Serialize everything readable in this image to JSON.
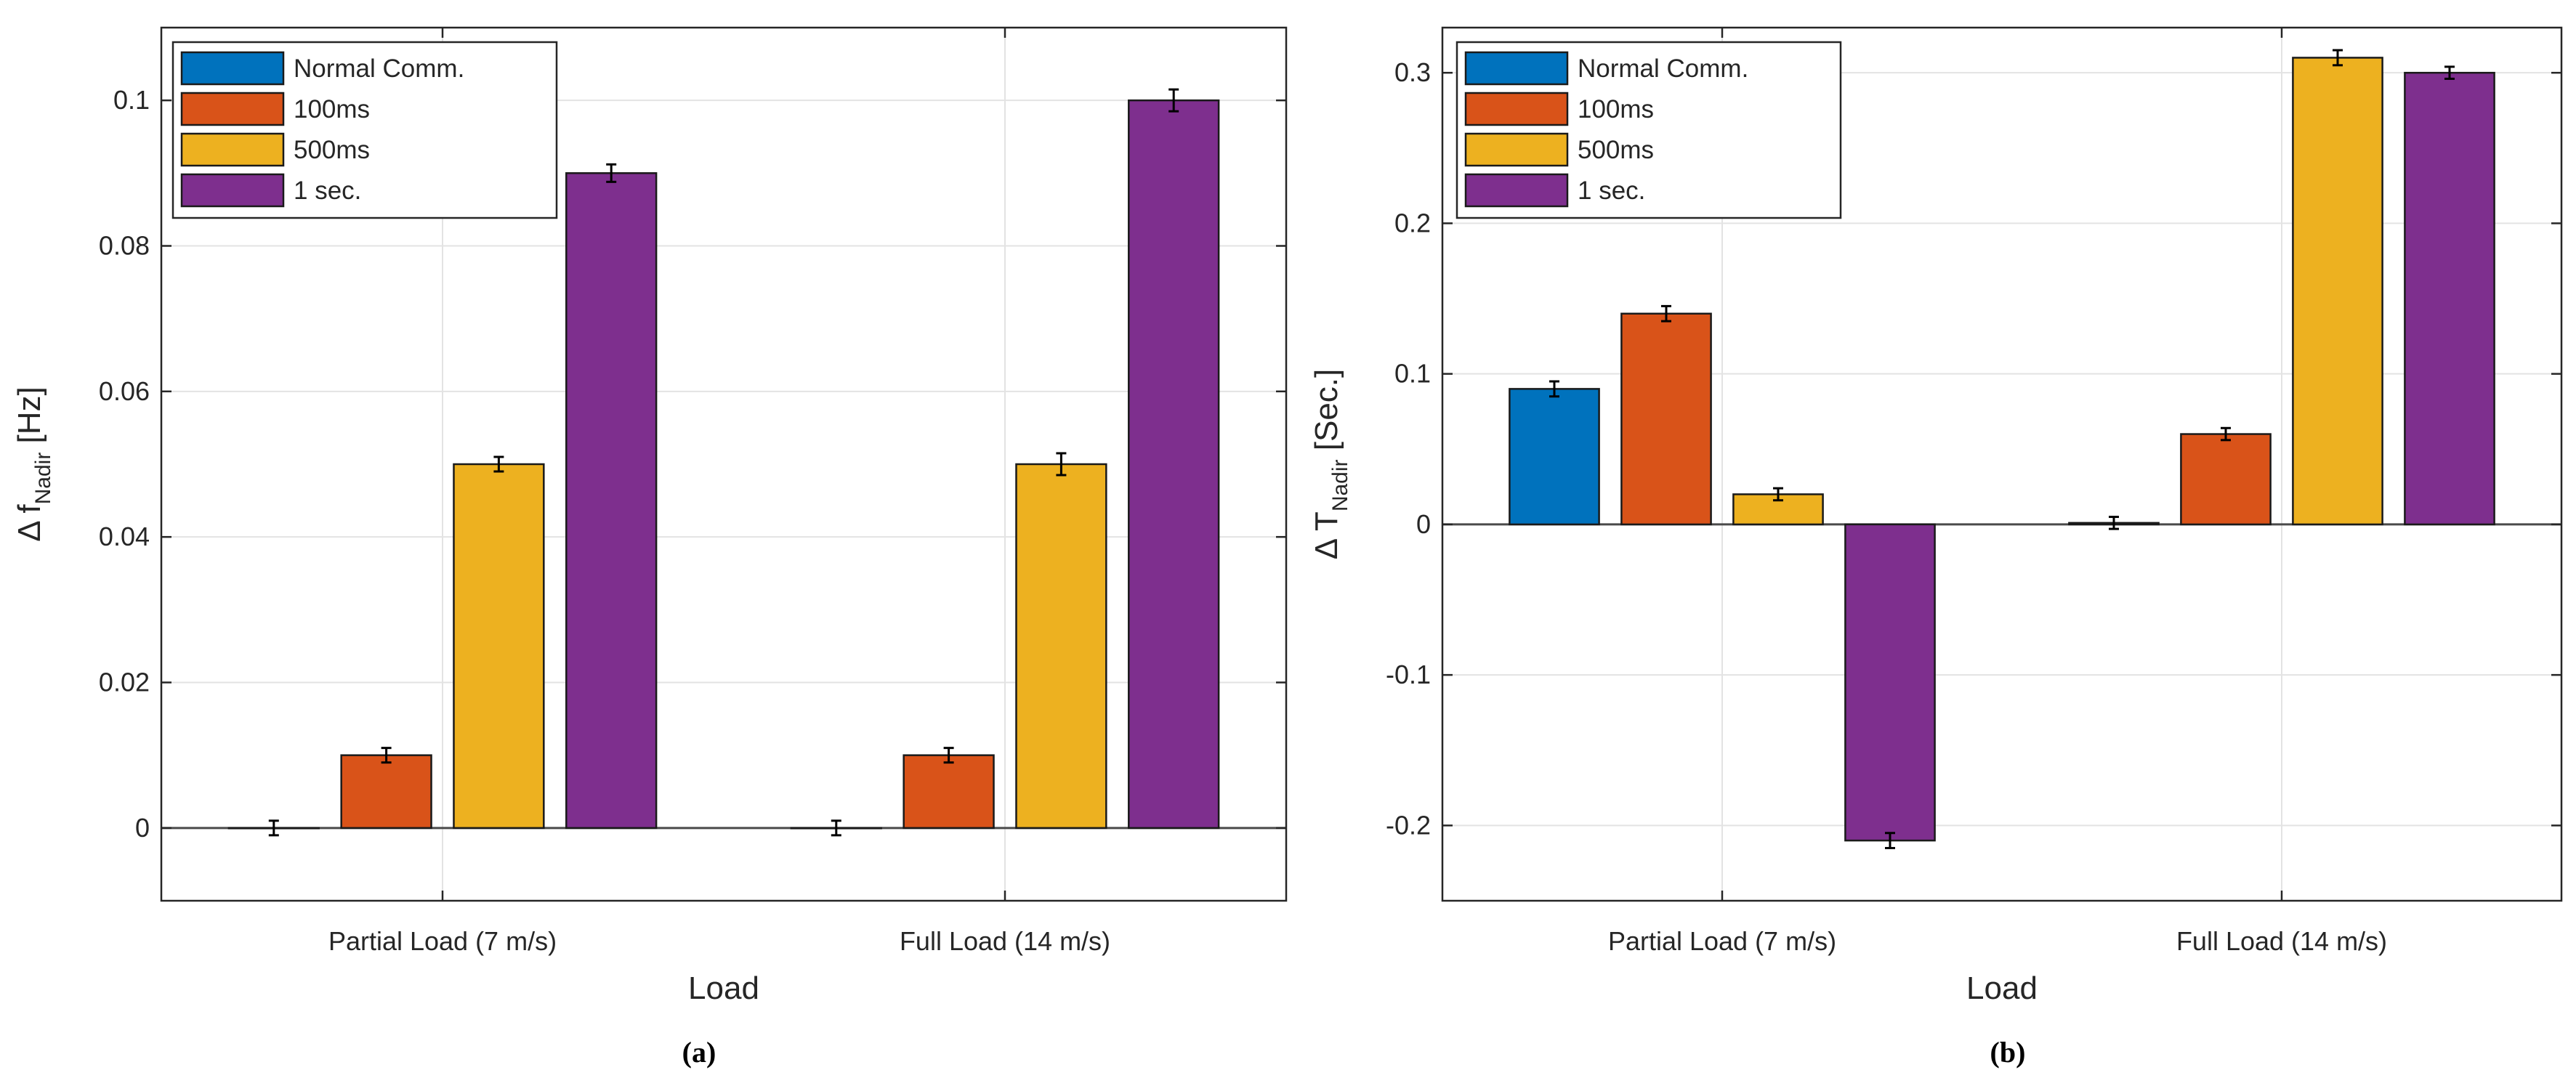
{
  "chart_data": [
    {
      "panel": "(a)",
      "type": "bar",
      "categories": [
        "Partial Load (7 m/s)",
        "Full Load (14 m/s)"
      ],
      "series": [
        {
          "name": "Normal Comm.",
          "color": "#0072BD",
          "values": [
            0.0,
            0.0
          ],
          "errors": [
            0.001,
            0.001
          ]
        },
        {
          "name": "100ms",
          "color": "#D95319",
          "values": [
            0.01,
            0.01
          ],
          "errors": [
            0.001,
            0.001
          ]
        },
        {
          "name": "500ms",
          "color": "#EDB120",
          "values": [
            0.05,
            0.05
          ],
          "errors": [
            0.001,
            0.0015
          ]
        },
        {
          "name": "1 sec.",
          "color": "#7E2F8E",
          "values": [
            0.09,
            0.1
          ],
          "errors": [
            0.0012,
            0.0015
          ]
        }
      ],
      "xlabel": "Load",
      "ylabel": "Δ f",
      "ylabel_sub": "Nadir",
      "ylabel_unit": " [Hz]",
      "ylim": [
        -0.01,
        0.11
      ],
      "yticks": [
        0,
        0.02,
        0.04,
        0.06,
        0.08,
        0.1
      ],
      "ytick_labels": [
        "0",
        "0.02",
        "0.04",
        "0.06",
        "0.08",
        "0.1"
      ],
      "grid": true,
      "legend_position": "top-left"
    },
    {
      "panel": "(b)",
      "type": "bar",
      "categories": [
        "Partial Load (7 m/s)",
        "Full Load (14 m/s)"
      ],
      "series": [
        {
          "name": "Normal Comm.",
          "color": "#0072BD",
          "values": [
            0.09,
            0.001
          ],
          "errors": [
            0.005,
            0.004
          ]
        },
        {
          "name": "100ms",
          "color": "#D95319",
          "values": [
            0.14,
            0.06
          ],
          "errors": [
            0.005,
            0.004
          ]
        },
        {
          "name": "500ms",
          "color": "#EDB120",
          "values": [
            0.02,
            0.31
          ],
          "errors": [
            0.004,
            0.005
          ]
        },
        {
          "name": "1 sec.",
          "color": "#7E2F8E",
          "values": [
            -0.21,
            0.3
          ],
          "errors": [
            0.005,
            0.004
          ]
        }
      ],
      "xlabel": "Load",
      "ylabel": "Δ T",
      "ylabel_sub": "Nadir",
      "ylabel_unit": " [Sec.]",
      "ylim": [
        -0.25,
        0.33
      ],
      "yticks": [
        -0.2,
        -0.1,
        0,
        0.1,
        0.2,
        0.3
      ],
      "ytick_labels": [
        "-0.2",
        "-0.1",
        "0",
        "0.1",
        "0.2",
        "0.3"
      ],
      "grid": true,
      "legend_position": "top-left"
    }
  ],
  "captions": [
    "(a)",
    "(b)"
  ]
}
